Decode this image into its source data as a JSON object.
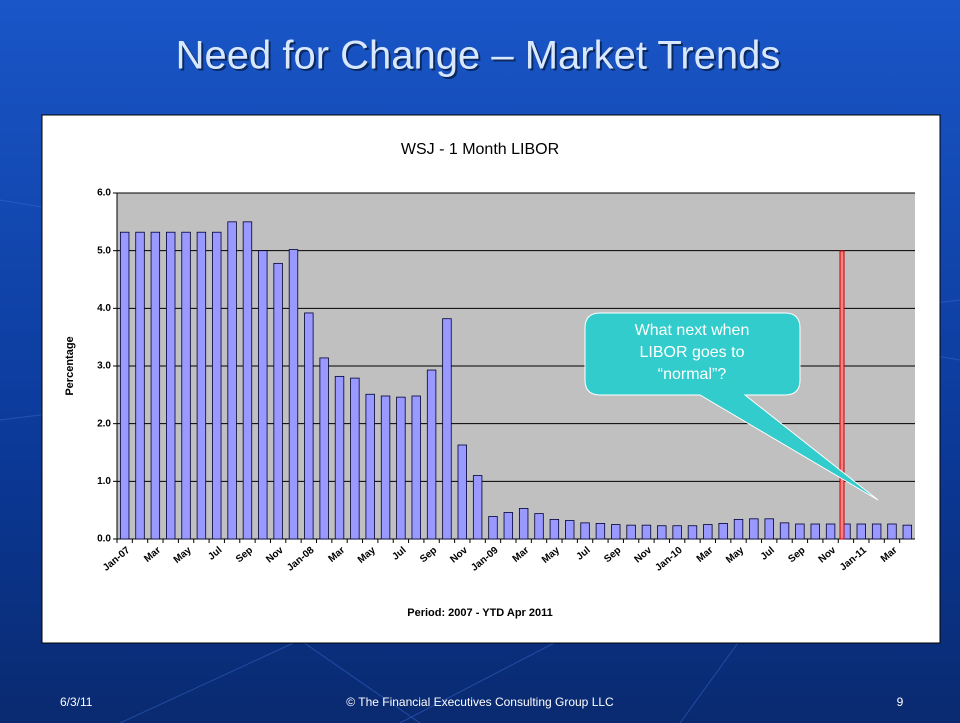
{
  "slide": {
    "title": "Need for Change – Market Trends",
    "date": "6/3/11",
    "footer": "© The Financial Executives Consulting Group LLC",
    "page": "9"
  },
  "chart_data": {
    "type": "bar",
    "title": "WSJ - 1 Month LIBOR",
    "x_label": "Period: 2007 - YTD Apr 2011",
    "y_label": "Percentage",
    "categories": [
      "Jan-07",
      null,
      "Mar",
      null,
      "May",
      null,
      "Jul",
      null,
      "Sep",
      null,
      "Nov",
      null,
      "Jan-08",
      null,
      "Mar",
      null,
      "May",
      null,
      "Jul",
      null,
      "Sep",
      null,
      "Nov",
      null,
      "Jan-09",
      null,
      "Mar",
      null,
      "May",
      null,
      "Jul",
      null,
      "Sep",
      null,
      "Nov",
      null,
      "Jan-10",
      null,
      "Mar",
      null,
      "May",
      null,
      "Jul",
      null,
      "Sep",
      null,
      "Nov",
      null,
      "Jan-11",
      null,
      "Mar",
      null
    ],
    "values": [
      5.32,
      5.32,
      5.32,
      5.32,
      5.32,
      5.32,
      5.32,
      5.5,
      5.5,
      5.0,
      4.78,
      5.02,
      3.92,
      3.14,
      2.82,
      2.79,
      2.51,
      2.48,
      2.46,
      2.48,
      2.93,
      3.82,
      1.63,
      1.1,
      0.39,
      0.46,
      0.53,
      0.44,
      0.34,
      0.32,
      0.28,
      0.27,
      0.25,
      0.24,
      0.24,
      0.23,
      0.23,
      0.23,
      0.25,
      0.27,
      0.34,
      0.35,
      0.35,
      0.28,
      0.26,
      0.26,
      0.26,
      0.26,
      0.26,
      0.26,
      0.26,
      0.24
    ],
    "color": "#9999ff",
    "ylim": [
      0,
      6
    ],
    "yticks": [
      {
        "value": 0,
        "label": "0.0"
      },
      {
        "value": 1,
        "label": "1.0"
      },
      {
        "value": 2,
        "label": "2.0"
      },
      {
        "value": 3,
        "label": "3.0"
      },
      {
        "value": 4,
        "label": "4.0"
      },
      {
        "value": 5,
        "label": "5.0"
      },
      {
        "value": 6,
        "label": "6.0"
      }
    ],
    "grid": true,
    "callout": [
      "What next when",
      "LIBOR goes to",
      "“normal”?"
    ]
  }
}
